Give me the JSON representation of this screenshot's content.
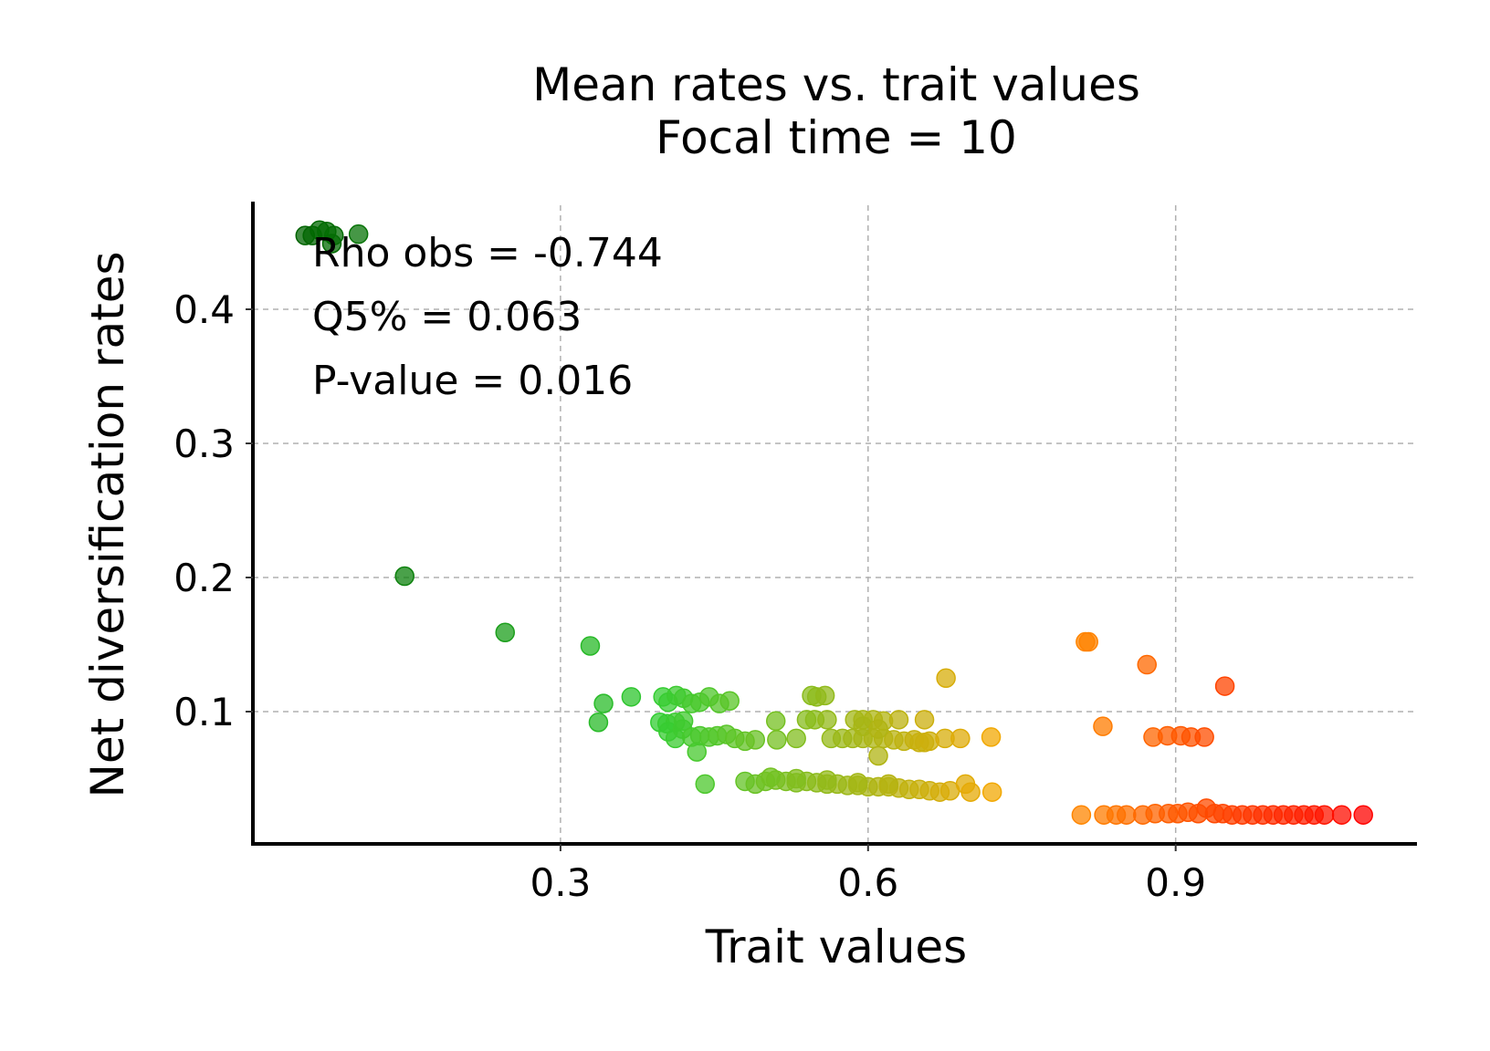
{
  "chart_data": {
    "type": "scatter",
    "title": "Mean rates vs. trait values",
    "subtitle": "Focal time = 10",
    "xlabel": "Trait values",
    "ylabel": "Net diversification rates",
    "xlim": [
      0.0,
      1.13
    ],
    "ylim": [
      0.0,
      0.48
    ],
    "xticks": [
      0.3,
      0.6,
      0.9
    ],
    "xtick_labels": [
      "0.3",
      "0.6",
      "0.9"
    ],
    "yticks": [
      0.1,
      0.2,
      0.3,
      0.4
    ],
    "ytick_labels": [
      "0.1",
      "0.2",
      "0.3",
      "0.4"
    ],
    "grid": true,
    "colormap": [
      "#006400",
      "#32cd32",
      "#ffa500",
      "#ff0000"
    ],
    "annotations": [
      "Rho obs = -0.744",
      "Q5% = 0.063",
      "P-value = 0.016"
    ],
    "points": [
      [
        0.051,
        0.455
      ],
      [
        0.058,
        0.455
      ],
      [
        0.065,
        0.459
      ],
      [
        0.072,
        0.458
      ],
      [
        0.079,
        0.455
      ],
      [
        0.077,
        0.449
      ],
      [
        0.103,
        0.456
      ],
      [
        0.148,
        0.201
      ],
      [
        0.246,
        0.159
      ],
      [
        0.329,
        0.149
      ],
      [
        0.342,
        0.106
      ],
      [
        0.369,
        0.111
      ],
      [
        0.337,
        0.092
      ],
      [
        0.4,
        0.111
      ],
      [
        0.405,
        0.107
      ],
      [
        0.413,
        0.112
      ],
      [
        0.42,
        0.11
      ],
      [
        0.428,
        0.106
      ],
      [
        0.436,
        0.107
      ],
      [
        0.445,
        0.111
      ],
      [
        0.455,
        0.106
      ],
      [
        0.465,
        0.108
      ],
      [
        0.397,
        0.092
      ],
      [
        0.404,
        0.091
      ],
      [
        0.412,
        0.092
      ],
      [
        0.42,
        0.093
      ],
      [
        0.405,
        0.085
      ],
      [
        0.412,
        0.08
      ],
      [
        0.419,
        0.087
      ],
      [
        0.428,
        0.081
      ],
      [
        0.436,
        0.082
      ],
      [
        0.445,
        0.081
      ],
      [
        0.453,
        0.082
      ],
      [
        0.462,
        0.083
      ],
      [
        0.47,
        0.08
      ],
      [
        0.48,
        0.078
      ],
      [
        0.49,
        0.079
      ],
      [
        0.433,
        0.07
      ],
      [
        0.441,
        0.046
      ],
      [
        0.51,
        0.093
      ],
      [
        0.511,
        0.079
      ],
      [
        0.53,
        0.08
      ],
      [
        0.54,
        0.094
      ],
      [
        0.545,
        0.112
      ],
      [
        0.55,
        0.111
      ],
      [
        0.558,
        0.112
      ],
      [
        0.548,
        0.094
      ],
      [
        0.56,
        0.094
      ],
      [
        0.564,
        0.08
      ],
      [
        0.575,
        0.08
      ],
      [
        0.585,
        0.08
      ],
      [
        0.595,
        0.08
      ],
      [
        0.605,
        0.08
      ],
      [
        0.615,
        0.08
      ],
      [
        0.625,
        0.079
      ],
      [
        0.635,
        0.078
      ],
      [
        0.645,
        0.079
      ],
      [
        0.655,
        0.077
      ],
      [
        0.587,
        0.094
      ],
      [
        0.595,
        0.094
      ],
      [
        0.605,
        0.094
      ],
      [
        0.615,
        0.093
      ],
      [
        0.63,
        0.094
      ],
      [
        0.655,
        0.094
      ],
      [
        0.595,
        0.089
      ],
      [
        0.61,
        0.087
      ],
      [
        0.65,
        0.077
      ],
      [
        0.66,
        0.078
      ],
      [
        0.675,
        0.08
      ],
      [
        0.69,
        0.08
      ],
      [
        0.72,
        0.081
      ],
      [
        0.61,
        0.067
      ],
      [
        0.676,
        0.125
      ],
      [
        0.48,
        0.048
      ],
      [
        0.49,
        0.046
      ],
      [
        0.5,
        0.048
      ],
      [
        0.51,
        0.049
      ],
      [
        0.52,
        0.048
      ],
      [
        0.53,
        0.047
      ],
      [
        0.54,
        0.048
      ],
      [
        0.55,
        0.047
      ],
      [
        0.56,
        0.046
      ],
      [
        0.57,
        0.046
      ],
      [
        0.58,
        0.045
      ],
      [
        0.59,
        0.045
      ],
      [
        0.6,
        0.044
      ],
      [
        0.61,
        0.044
      ],
      [
        0.62,
        0.044
      ],
      [
        0.63,
        0.043
      ],
      [
        0.64,
        0.042
      ],
      [
        0.65,
        0.042
      ],
      [
        0.66,
        0.041
      ],
      [
        0.67,
        0.04
      ],
      [
        0.68,
        0.041
      ],
      [
        0.695,
        0.046
      ],
      [
        0.7,
        0.04
      ],
      [
        0.721,
        0.04
      ],
      [
        0.505,
        0.051
      ],
      [
        0.53,
        0.05
      ],
      [
        0.56,
        0.049
      ],
      [
        0.59,
        0.047
      ],
      [
        0.62,
        0.046
      ],
      [
        0.812,
        0.152
      ],
      [
        0.815,
        0.152
      ],
      [
        0.872,
        0.135
      ],
      [
        0.948,
        0.119
      ],
      [
        0.829,
        0.089
      ],
      [
        0.878,
        0.081
      ],
      [
        0.892,
        0.082
      ],
      [
        0.905,
        0.082
      ],
      [
        0.915,
        0.081
      ],
      [
        0.928,
        0.081
      ],
      [
        0.808,
        0.023
      ],
      [
        0.83,
        0.023
      ],
      [
        0.842,
        0.023
      ],
      [
        0.852,
        0.023
      ],
      [
        0.868,
        0.023
      ],
      [
        0.88,
        0.024
      ],
      [
        0.893,
        0.024
      ],
      [
        0.902,
        0.024
      ],
      [
        0.912,
        0.025
      ],
      [
        0.922,
        0.024
      ],
      [
        0.93,
        0.028
      ],
      [
        0.938,
        0.024
      ],
      [
        0.946,
        0.024
      ],
      [
        0.955,
        0.023
      ],
      [
        0.965,
        0.023
      ],
      [
        0.975,
        0.023
      ],
      [
        0.985,
        0.023
      ],
      [
        0.995,
        0.023
      ],
      [
        1.005,
        0.023
      ],
      [
        1.015,
        0.023
      ],
      [
        1.025,
        0.023
      ],
      [
        1.035,
        0.023
      ],
      [
        1.045,
        0.023
      ],
      [
        1.062,
        0.023
      ],
      [
        1.083,
        0.023
      ]
    ]
  }
}
